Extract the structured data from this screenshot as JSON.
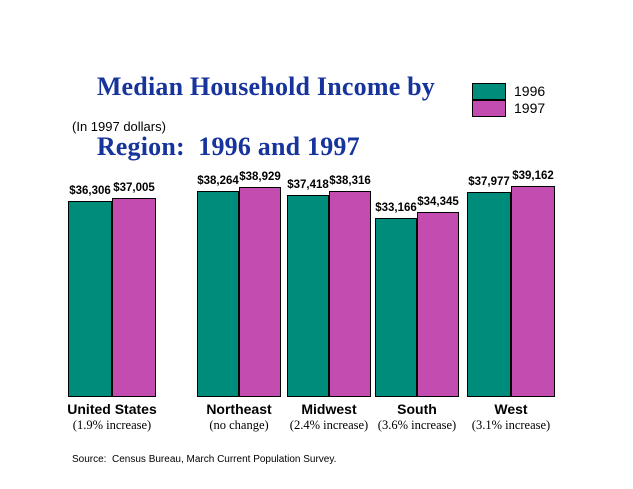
{
  "title": {
    "line1": "Median Household Income by",
    "line2": "Region:  1996 and 1997"
  },
  "subtitle": "(In 1997 dollars)",
  "source": "Source:  Census Bureau, March Current Population Survey.",
  "colors": {
    "title_blue": "#16349C",
    "series_1996": "#008C7A",
    "series_1997": "#C24CB0"
  },
  "chart_data": {
    "type": "bar",
    "title": "Median Household Income by Region:  1996 and 1997",
    "subtitle": "(In 1997 dollars)",
    "categories": [
      "United States",
      "Northeast",
      "Midwest",
      "South",
      "West"
    ],
    "category_notes": [
      "(1.9% increase)",
      "(no change)",
      "(2.4% increase)",
      "(3.6% increase)",
      "(3.1% increase)"
    ],
    "series": [
      {
        "name": "1996",
        "color": "#008C7A",
        "values": [
          36306,
          38264,
          37418,
          33166,
          37977
        ],
        "labels": [
          "$36,306",
          "$38,264",
          "$37,418",
          "$33,166",
          "$37,977"
        ]
      },
      {
        "name": "1997",
        "color": "#C24CB0",
        "values": [
          37005,
          38929,
          38316,
          34345,
          39162
        ],
        "labels": [
          "$37,005",
          "$38,929",
          "$38,316",
          "$34,345",
          "$39,162"
        ]
      }
    ],
    "ylim": [
      0,
      39162
    ],
    "xlabel": "",
    "ylabel": "",
    "grid": false,
    "legend_position": "top-right"
  }
}
